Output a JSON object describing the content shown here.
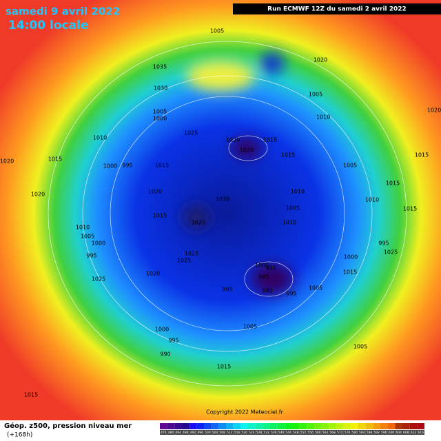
{
  "header": {
    "date": "samedi 9 avril 2022",
    "time": "14:00 locale",
    "run": "Run ECMWF 12Z du samedi 2 avril 2022"
  },
  "footer": {
    "title": "Géop. z500, pression niveau mer",
    "lead": "(+168h)",
    "copyright": "Copyright 2022 Meteociel.fr"
  },
  "colorbar": [
    476,
    480,
    484,
    488,
    492,
    496,
    500,
    504,
    508,
    512,
    516,
    520,
    524,
    528,
    532,
    536,
    540,
    544,
    548,
    552,
    556,
    560,
    564,
    568,
    572,
    576,
    580,
    584,
    588,
    592,
    596,
    600,
    604,
    608,
    612,
    616
  ],
  "isobars": [
    1005,
    1035,
    1020,
    1030,
    1005,
    1005,
    1000,
    1025,
    1010,
    1020,
    1015,
    1020,
    1015,
    1010,
    1015,
    1020,
    995,
    1000,
    1015,
    1005,
    1015,
    1020,
    1010,
    1020,
    1030,
    1005,
    1020,
    1015,
    1020,
    1010,
    1010,
    1010,
    1005,
    1000,
    995,
    1025,
    1025,
    1000,
    990,
    985,
    980,
    995,
    995,
    1005,
    1020,
    1000,
    1015,
    1025,
    1000,
    995,
    990,
    1005,
    1005,
    1015,
    1015,
    1015,
    1015,
    995,
    1025
  ]
}
